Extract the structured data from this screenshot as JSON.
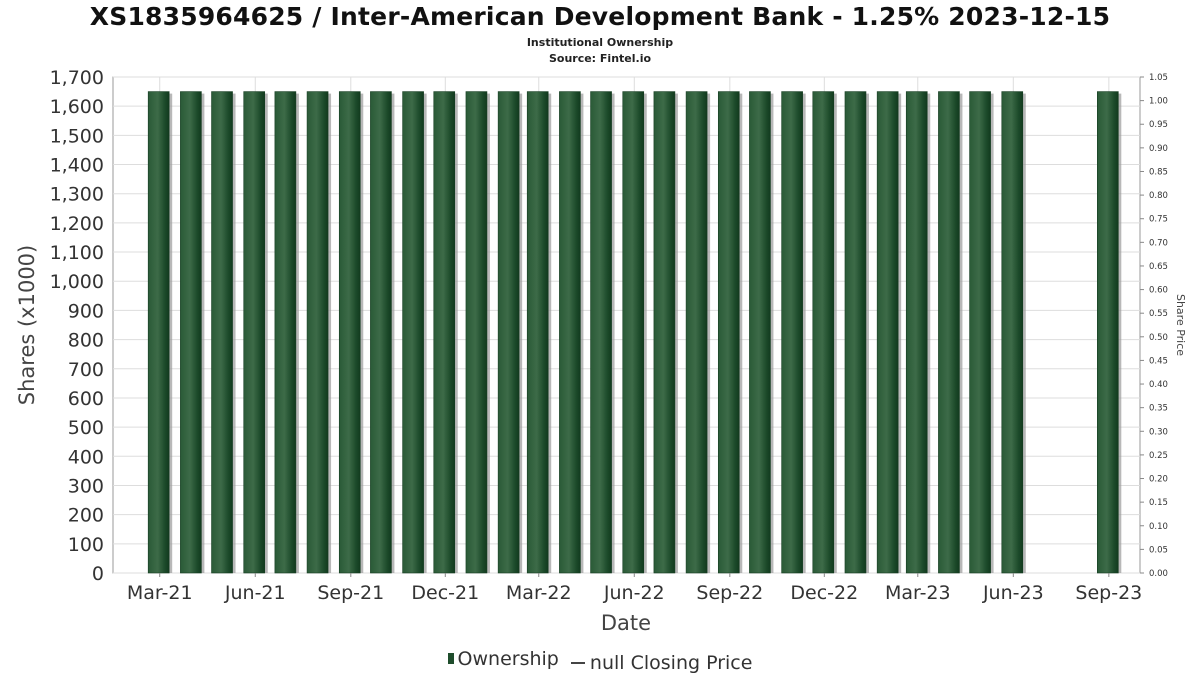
{
  "header": {
    "title": "XS1835964625 / Inter-American Development Bank - 1.25% 2023-12-15",
    "subtitle": "Institutional Ownership",
    "source": "Source: Fintel.io"
  },
  "legend": {
    "ownership_label": "Ownership",
    "price_label": "null Closing Price"
  },
  "colors": {
    "bar": "#1f4d2c",
    "bar_highlight": "#3d6b48",
    "bar_shadow": "#9a9a9a",
    "grid": "#dddddd",
    "axis": "#888888"
  },
  "chart_data": {
    "type": "bar",
    "xlabel": "Date",
    "ylabel": "Shares (x1000)",
    "y2label": "Share Price",
    "ylim": [
      0,
      1700
    ],
    "y2lim": [
      0,
      1.05
    ],
    "yticks": [
      0,
      100,
      200,
      300,
      400,
      500,
      600,
      700,
      800,
      900,
      1000,
      1100,
      1200,
      1300,
      1400,
      1500,
      1600,
      1700
    ],
    "ytick_labels": [
      "0",
      "100",
      "200",
      "300",
      "400",
      "500",
      "600",
      "700",
      "800",
      "900",
      "1,000",
      "1,100",
      "1,200",
      "1,300",
      "1,400",
      "1,500",
      "1,600",
      "1,700"
    ],
    "y2ticks": [
      0,
      0.05,
      0.1,
      0.15,
      0.2,
      0.25,
      0.3,
      0.35,
      0.4,
      0.45,
      0.5,
      0.55,
      0.6,
      0.65,
      0.7,
      0.75,
      0.8,
      0.85,
      0.9,
      0.95,
      1.0,
      1.05
    ],
    "y2tick_labels": [
      "0.00",
      "0.05",
      "0.10",
      "0.15",
      "0.20",
      "0.25",
      "0.30",
      "0.35",
      "0.40",
      "0.45",
      "0.50",
      "0.55",
      "0.60",
      "0.65",
      "0.70",
      "0.75",
      "0.80",
      "0.85",
      "0.90",
      "0.95",
      "1.00",
      "1.05"
    ],
    "xlim": [
      "2021-01-15",
      "2023-10-01"
    ],
    "xtick_labels": [
      "Mar-21",
      "Jun-21",
      "Sep-21",
      "Dec-21",
      "Mar-22",
      "Jun-22",
      "Sep-22",
      "Dec-22",
      "Mar-23",
      "Jun-23",
      "Sep-23"
    ],
    "xtick_dates": [
      "2021-03-01",
      "2021-06-01",
      "2021-09-01",
      "2021-12-01",
      "2022-03-01",
      "2022-06-01",
      "2022-09-01",
      "2022-12-01",
      "2023-03-01",
      "2023-06-01",
      "2023-09-01"
    ],
    "series": [
      {
        "name": "Ownership",
        "x": [
          "2021-02-28",
          "2021-03-31",
          "2021-04-30",
          "2021-05-31",
          "2021-06-30",
          "2021-07-31",
          "2021-08-31",
          "2021-09-30",
          "2021-10-31",
          "2021-11-30",
          "2021-12-31",
          "2022-01-31",
          "2022-02-28",
          "2022-03-31",
          "2022-04-30",
          "2022-05-31",
          "2022-06-30",
          "2022-07-31",
          "2022-08-31",
          "2022-09-30",
          "2022-10-31",
          "2022-11-30",
          "2022-12-31",
          "2023-01-31",
          "2023-02-28",
          "2023-03-31",
          "2023-04-30",
          "2023-05-31",
          "2023-08-31"
        ],
        "values": [
          1650,
          1650,
          1650,
          1650,
          1650,
          1650,
          1650,
          1650,
          1650,
          1650,
          1650,
          1650,
          1650,
          1650,
          1650,
          1650,
          1650,
          1650,
          1650,
          1650,
          1650,
          1650,
          1650,
          1650,
          1650,
          1650,
          1650,
          1650,
          1650
        ]
      }
    ],
    "grid": true
  }
}
